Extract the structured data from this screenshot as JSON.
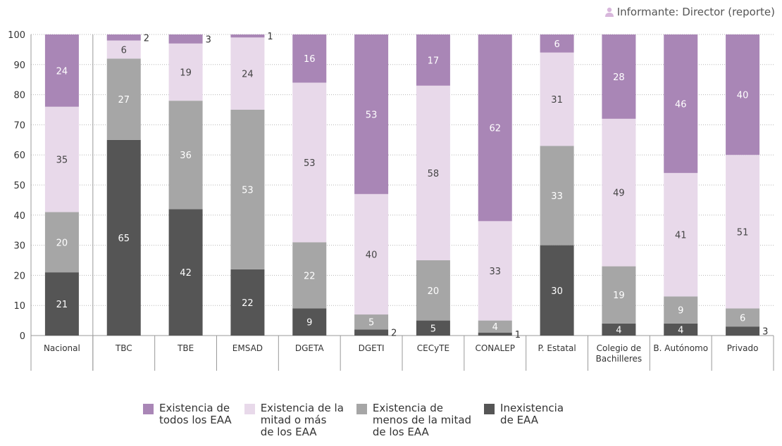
{
  "informant": {
    "label": "Informante: Director (reporte)",
    "icon": "person-icon"
  },
  "chart_data": {
    "type": "bar",
    "stacked": true,
    "title": "",
    "xlabel": "",
    "ylabel": "",
    "ylim": [
      0,
      100
    ],
    "yticks": [
      0,
      10,
      20,
      30,
      40,
      50,
      60,
      70,
      80,
      90,
      100
    ],
    "grid": true,
    "legend_position": "bottom",
    "categories": [
      "Nacional",
      "TBC",
      "TBE",
      "EMSAD",
      "DGETA",
      "DGETI",
      "CECyTE",
      "CONALEP",
      "P. Estatal",
      "Colegio de\nBachilleres",
      "B. Autónomo",
      "Privado"
    ],
    "series": [
      {
        "name": "Inexistencia\nde EAA",
        "color": "#555555",
        "label_color": "#ffffff",
        "values": [
          21,
          65,
          42,
          22,
          9,
          2,
          5,
          1,
          30,
          4,
          4,
          3
        ]
      },
      {
        "name": "Existencia de\nmenos de la mitad\nde los EAA",
        "color": "#a6a6a6",
        "label_color": "#ffffff",
        "values": [
          20,
          27,
          36,
          53,
          22,
          5,
          20,
          4,
          33,
          19,
          9,
          6
        ]
      },
      {
        "name": "Existencia de la\nmitad o más\nde los EAA",
        "color": "#e8d9ea",
        "label_color": "#444444",
        "values": [
          35,
          6,
          19,
          24,
          53,
          40,
          58,
          33,
          31,
          49,
          41,
          51
        ]
      },
      {
        "name": "Existencia de\ntodos los EAA",
        "color": "#a986b6",
        "label_color": "#ffffff",
        "values": [
          24,
          2,
          3,
          1,
          16,
          53,
          17,
          62,
          6,
          28,
          46,
          40
        ]
      }
    ],
    "legend_order": [
      3,
      2,
      1,
      0
    ]
  }
}
